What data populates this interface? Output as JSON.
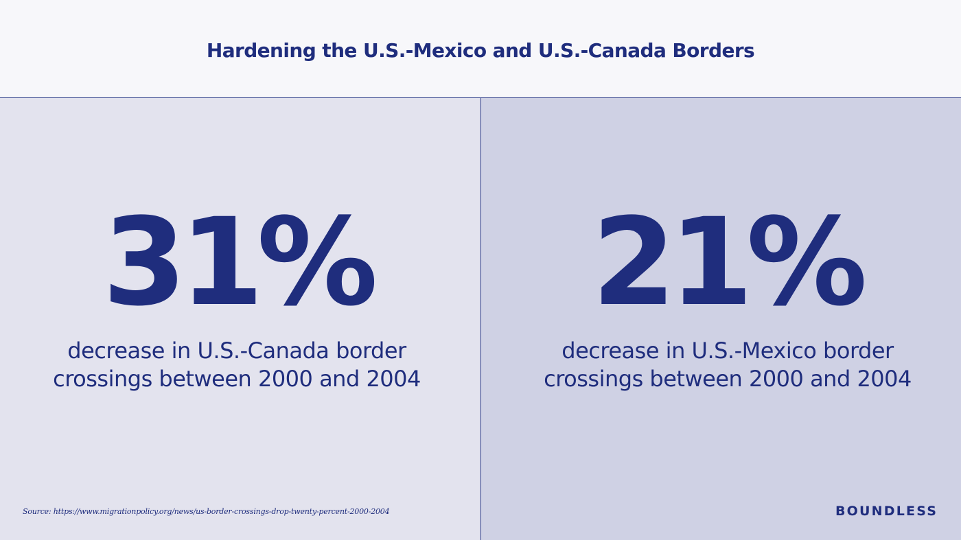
{
  "header": {
    "title": "Hardening the U.S.-Mexico and U.S.-Canada Borders"
  },
  "stats": [
    {
      "value": "31%",
      "description_line1": "decrease in U.S.-Canada border",
      "description_line2": "crossings between 2000 and 2004"
    },
    {
      "value": "21%",
      "description_line1": "decrease in U.S.-Mexico border",
      "description_line2": "crossings between 2000 and 2004"
    }
  ],
  "footer": {
    "source": "Source: https://www.migrationpolicy.org/news/us-border-crossings-drop-twenty-percent-2000-2004",
    "logo": "BOUNDLESS"
  },
  "colors": {
    "primary": "#1f2d7d",
    "header_bg": "#f7f7fa",
    "left_panel_bg": "#e3e3ee",
    "right_panel_bg": "#cfd1e4"
  }
}
